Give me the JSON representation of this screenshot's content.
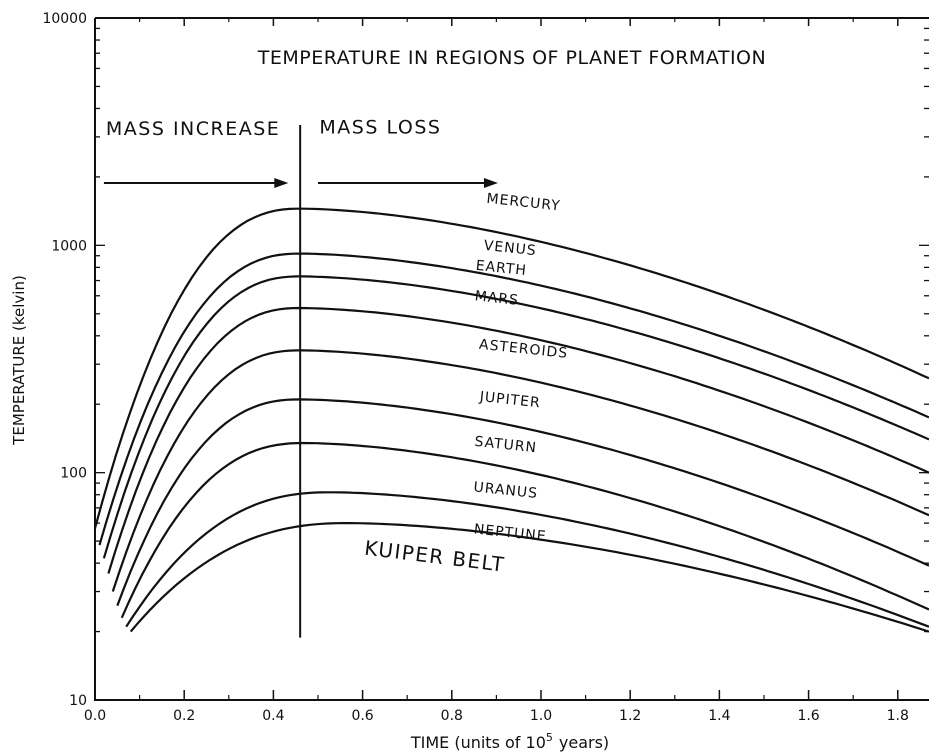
{
  "chart_data": {
    "type": "line",
    "title": "TEMPERATURE IN REGIONS OF PLANET FORMATION",
    "xlabel": "TIME (units of 10",
    "xlabel_exp": "5",
    "xlabel_end": "years)",
    "ylabel": "TEMPERATURE (kelvin)",
    "xlim": [
      0.0,
      1.87
    ],
    "ylim": [
      10,
      10000
    ],
    "y_scale": "log",
    "grid": false,
    "x_ticks": [
      "0.0",
      "0.2",
      "0.4",
      "0.6",
      "0.8",
      "1.0",
      "1.2",
      "1.4",
      "1.6",
      "1.8"
    ],
    "x_tick_values": [
      0.0,
      0.2,
      0.4,
      0.6,
      0.8,
      1.0,
      1.2,
      1.4,
      1.6,
      1.8
    ],
    "y_ticks": [
      "10",
      "100",
      "1000",
      "10000"
    ],
    "y_tick_values": [
      10,
      100,
      1000,
      10000
    ],
    "divider_x": 0.46,
    "phase_labels": [
      {
        "text": "MASS INCREASE",
        "x": 0.22,
        "y": 3050
      },
      {
        "text": "MASS LOSS",
        "x": 0.64,
        "y": 3100
      }
    ],
    "phase_arrows": [
      {
        "x1": 0.02,
        "x2": 0.42,
        "y": 1880
      },
      {
        "x1": 0.5,
        "x2": 0.89,
        "y": 1880
      }
    ],
    "region_label": {
      "text": "KUIPER BELT",
      "x": 0.76,
      "y": 40
    },
    "series": [
      {
        "name": "MERCURY",
        "start": 57,
        "peak": 1450,
        "peak_x": 0.46,
        "end": 260,
        "label_x": 0.96,
        "label_y": 1480
      },
      {
        "name": "VENUS",
        "start": 48,
        "peak": 920,
        "peak_x": 0.46,
        "end": 175,
        "label_x": 0.93,
        "label_y": 930
      },
      {
        "name": "EARTH",
        "start": 42,
        "peak": 730,
        "peak_x": 0.46,
        "end": 140,
        "label_x": 0.91,
        "label_y": 760
      },
      {
        "name": "MARS",
        "start": 36,
        "peak": 530,
        "peak_x": 0.46,
        "end": 100,
        "label_x": 0.9,
        "label_y": 560
      },
      {
        "name": "ASTEROIDS",
        "start": 30,
        "peak": 345,
        "peak_x": 0.46,
        "end": 65,
        "label_x": 0.96,
        "label_y": 335
      },
      {
        "name": "JUPITER",
        "start": 26,
        "peak": 210,
        "peak_x": 0.46,
        "end": 39,
        "label_x": 0.93,
        "label_y": 200
      },
      {
        "name": "SATURN",
        "start": 23,
        "peak": 135,
        "peak_x": 0.47,
        "end": 25,
        "label_x": 0.92,
        "label_y": 127
      },
      {
        "name": "URANUS",
        "start": 21,
        "peak": 82,
        "peak_x": 0.53,
        "end": 21,
        "label_x": 0.92,
        "label_y": 80
      },
      {
        "name": "NEPTUNE",
        "start": 20,
        "peak": 60,
        "peak_x": 0.57,
        "end": 20,
        "label_x": 0.93,
        "label_y": 52
      }
    ]
  }
}
